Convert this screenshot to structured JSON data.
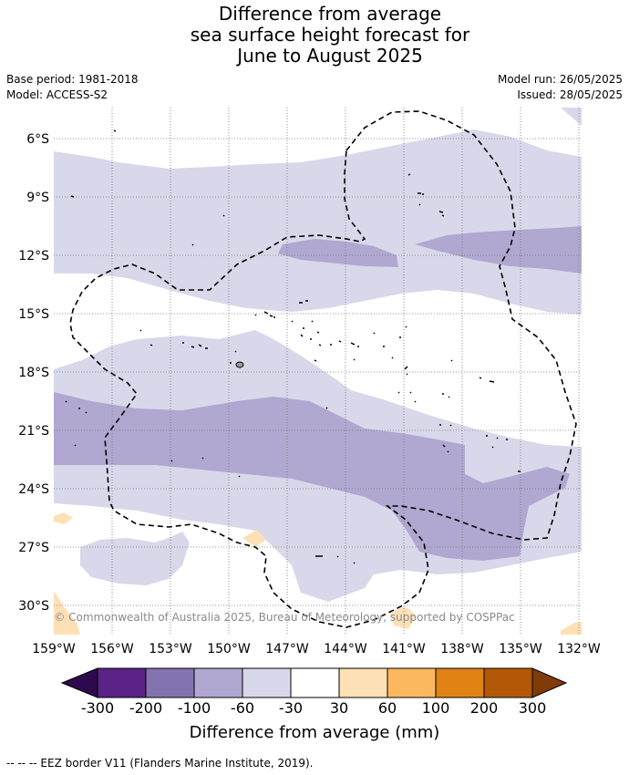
{
  "title": {
    "line1": "Difference from average",
    "line2": "sea surface height forecast for",
    "line3": "June to August 2025"
  },
  "meta": {
    "base_period": "Base period: 1981-2018",
    "model": "Model: ACCESS-S2",
    "model_run": "Model run: 26/05/2025",
    "issued": "Issued: 28/05/2025"
  },
  "map": {
    "x_ticks": [
      "159°W",
      "156°W",
      "153°W",
      "150°W",
      "147°W",
      "144°W",
      "141°W",
      "138°W",
      "135°W",
      "132°W"
    ],
    "y_ticks": [
      "6°S",
      "9°S",
      "12°S",
      "15°S",
      "18°S",
      "21°S",
      "24°S",
      "27°S",
      "30°S"
    ],
    "grid": true,
    "copyright": "© Commonwealth of Australia 2025, Bureau of Meteorology, supported by COSPPac"
  },
  "colorbar": {
    "labels": [
      "-300",
      "-200",
      "-100",
      "-60",
      "-30",
      "30",
      "60",
      "100",
      "200",
      "300"
    ],
    "colors": [
      "#2d0a4e",
      "#5b2388",
      "#8373af",
      "#b0a8d0",
      "#d8d8ea",
      "#ffffff",
      "#fee0b6",
      "#fbb85e",
      "#e08214",
      "#b35806",
      "#7f3b08"
    ],
    "title": "Difference from average (mm)"
  },
  "footnote": "--  --  -- EEZ border V11 (Flanders Marine Institute, 2019)."
}
